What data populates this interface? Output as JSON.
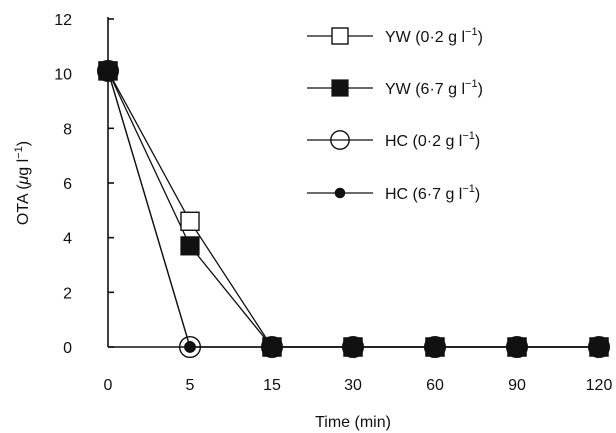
{
  "chart_data": {
    "type": "line",
    "xlabel": "Time (min)",
    "ylabel_main": "OTA (",
    "ylabel_mu": "μ",
    "ylabel_rest": "g l",
    "ylabel_sup": "−1",
    "ylabel_end": ")",
    "x_categories": [
      "0",
      "5",
      "15",
      "30",
      "60",
      "90",
      "120"
    ],
    "y_ticks": [
      "0",
      "2",
      "4",
      "6",
      "8",
      "10",
      "12"
    ],
    "ylim": [
      0,
      12
    ],
    "grid": false,
    "legend_placement": "top-right",
    "series": [
      {
        "name": "YW (0·2 g l",
        "sup": "−1",
        "close": ")",
        "marker": "open-square",
        "values": [
          10.1,
          4.6,
          0,
          0,
          0,
          0,
          0
        ]
      },
      {
        "name": "YW (6·7 g l",
        "sup": "−1",
        "close": ")",
        "marker": "filled-square",
        "values": [
          10.1,
          3.7,
          0,
          0,
          0,
          0,
          0
        ]
      },
      {
        "name": "HC (0·2 g l",
        "sup": "−1",
        "close": ")",
        "marker": "open-circle",
        "values": [
          10.1,
          0,
          0,
          0,
          0,
          0,
          0
        ]
      },
      {
        "name": "HC (6·7 g l",
        "sup": "−1",
        "close": ")",
        "marker": "filled-circle",
        "values": [
          10.1,
          0,
          0,
          0,
          0,
          0,
          0
        ]
      }
    ]
  }
}
